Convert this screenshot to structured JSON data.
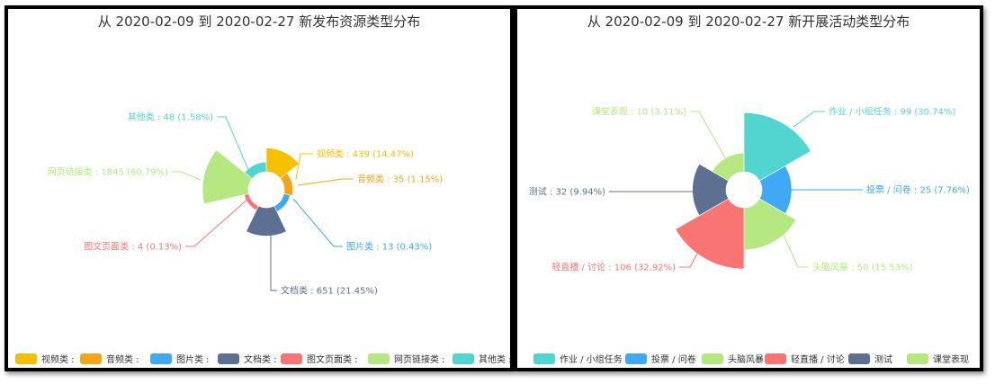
{
  "chart_data": [
    {
      "type": "pie",
      "variant": "nightingale-rose",
      "title": "从 2020-02-09 到 2020-02-27 新发布资源类型分布",
      "legend_position": "bottom",
      "slices": [
        {
          "name": "视频类",
          "value": 439,
          "percent": "14.47%",
          "color": "#F5C000"
        },
        {
          "name": "音频类",
          "value": 35,
          "percent": "1.15%",
          "color": "#F3A615"
        },
        {
          "name": "图片类",
          "value": 13,
          "percent": "0.43%",
          "color": "#3FA9F5"
        },
        {
          "name": "文档类",
          "value": 651,
          "percent": "21.45%",
          "color": "#5E7092"
        },
        {
          "name": "图文页面类",
          "value": 4,
          "percent": "0.13%",
          "color": "#F87574"
        },
        {
          "name": "网页链接类",
          "value": 1845,
          "percent": "60.79%",
          "color": "#B5E880"
        },
        {
          "name": "其他类",
          "value": 48,
          "percent": "1.58%",
          "color": "#52D5D1"
        }
      ],
      "legend_suffix": " :"
    },
    {
      "type": "pie",
      "variant": "nightingale-rose",
      "title": "从 2020-02-09 到 2020-02-27 新开展活动类型分布",
      "legend_position": "bottom",
      "slices": [
        {
          "name": "作业 / 小组任务",
          "value": 99,
          "percent": "30.74%",
          "color": "#52D5D1"
        },
        {
          "name": "投票 / 问卷",
          "value": 25,
          "percent": "7.76%",
          "color": "#3FA9F5"
        },
        {
          "name": "头脑风暴",
          "value": 50,
          "percent": "15.53%",
          "color": "#B5E880"
        },
        {
          "name": "轻直播 / 讨论",
          "value": 106,
          "percent": "32.92%",
          "color": "#F87574"
        },
        {
          "name": "测试",
          "value": 32,
          "percent": "9.94%",
          "color": "#5E7092"
        },
        {
          "name": "课堂表现",
          "value": 10,
          "percent": "3.11%",
          "color": "#B5E880"
        }
      ],
      "legend_suffix": ""
    }
  ]
}
